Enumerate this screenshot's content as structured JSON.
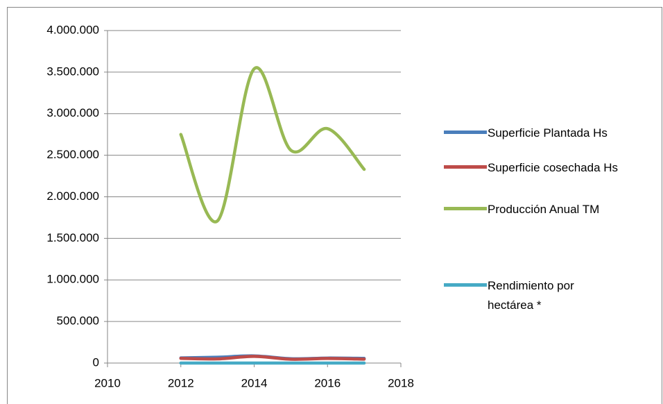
{
  "chart_data": {
    "type": "line",
    "x": [
      2012,
      2013,
      2014,
      2015,
      2016,
      2017
    ],
    "series": [
      {
        "name": "Superficie Plantada Hs",
        "color": "#4a7ebb",
        "values": [
          62000,
          70000,
          86000,
          52000,
          60000,
          56000
        ]
      },
      {
        "name": "Superficie cosechada Hs",
        "color": "#be4b48",
        "values": [
          56000,
          50000,
          80000,
          46000,
          55000,
          47000
        ]
      },
      {
        "name": "Producción Anual TM",
        "color": "#98b954",
        "values": [
          2750000,
          1710000,
          3540000,
          2560000,
          2820000,
          2330000
        ]
      },
      {
        "name": "Rendimiento por hectárea *",
        "color": "#46aac5",
        "values": [
          45,
          34,
          42,
          51,
          47,
          42
        ]
      }
    ],
    "xlim": [
      2010,
      2018
    ],
    "xticks": [
      2010,
      2012,
      2014,
      2016,
      2018
    ],
    "ylim": [
      0,
      4000000
    ],
    "yticks": [
      0,
      {
        "value": 500000,
        "label": "500.000"
      },
      {
        "value": 1000000,
        "label": "1.000.000"
      },
      {
        "value": 1500000,
        "label": "1.500.000"
      },
      {
        "value": 2000000,
        "label": "2.000.000"
      },
      {
        "value": 2500000,
        "label": "2.500.000"
      },
      {
        "value": 3000000,
        "label": "3.000.000"
      },
      {
        "value": 3500000,
        "label": "3.500.000"
      },
      {
        "value": 4000000,
        "label": "4.000.000"
      }
    ],
    "grid": true,
    "smooth": true,
    "legend": "right"
  }
}
